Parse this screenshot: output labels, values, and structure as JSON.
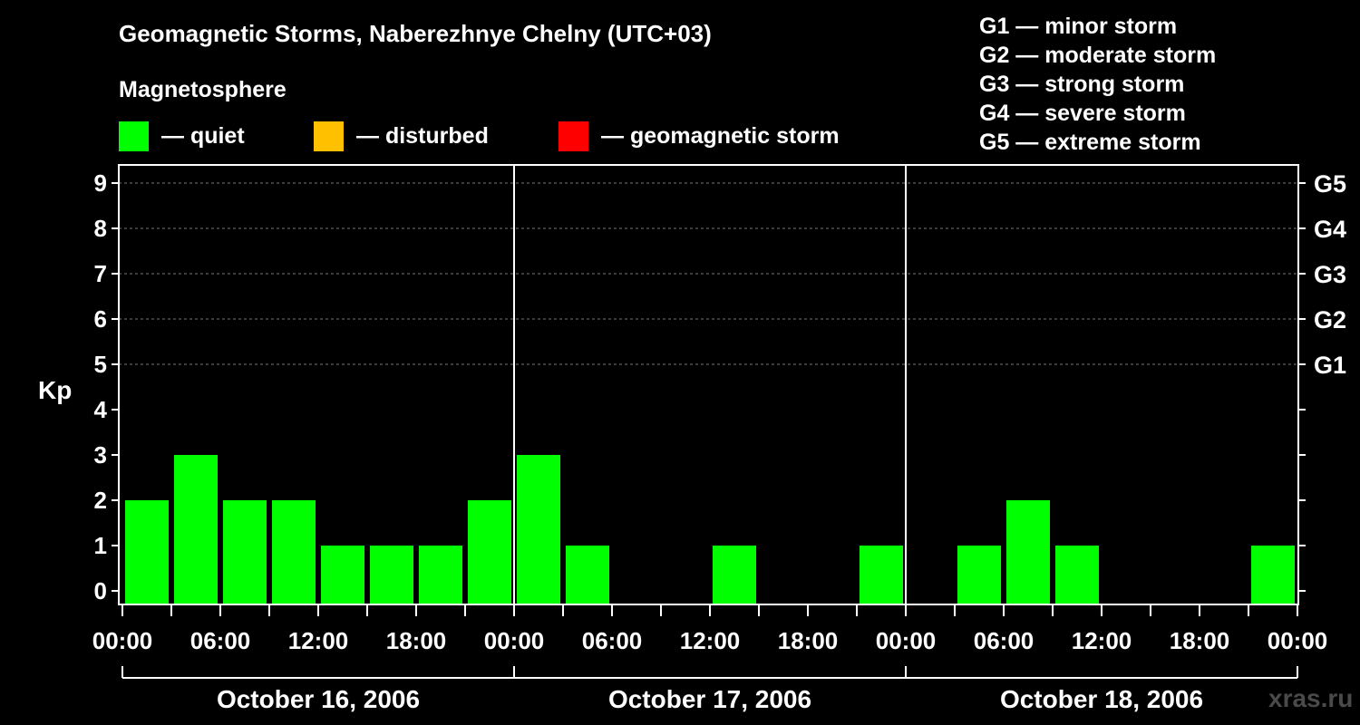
{
  "header": {
    "title": "Geomagnetic Storms, Naberezhnye Chelny (UTC+03)",
    "magnetosphere_title": "Magnetosphere"
  },
  "legend": {
    "items": [
      {
        "label": "— quiet",
        "color": "#00ff00"
      },
      {
        "label": "— disturbed",
        "color": "#ffc000"
      },
      {
        "label": "— geomagnetic storm",
        "color": "#ff0000"
      }
    ]
  },
  "g_scale": [
    "G1 — minor storm",
    "G2 — moderate storm",
    "G3 — strong storm",
    "G4 — severe storm",
    "G5 — extreme storm"
  ],
  "watermark": "xras.ru",
  "chart_data": {
    "type": "bar",
    "ylabel": "Kp",
    "ylim": [
      0,
      9
    ],
    "yticks": [
      "0",
      "1",
      "2",
      "3",
      "4",
      "5",
      "6",
      "7",
      "8",
      "9"
    ],
    "right_ticks": [
      {
        "value": 5,
        "label": "G1"
      },
      {
        "value": 6,
        "label": "G2"
      },
      {
        "value": 7,
        "label": "G3"
      },
      {
        "value": 8,
        "label": "G4"
      },
      {
        "value": 9,
        "label": "G5"
      }
    ],
    "right_minor_ticks": [
      0,
      1,
      2,
      3,
      4
    ],
    "grid_lines": [
      5,
      6,
      7,
      8,
      9
    ],
    "xtick_labels": [
      "00:00",
      "06:00",
      "12:00",
      "18:00",
      "00:00",
      "06:00",
      "12:00",
      "18:00",
      "00:00",
      "06:00",
      "12:00",
      "18:00",
      "00:00"
    ],
    "days": [
      "October 16, 2006",
      "October 17, 2006",
      "October 18, 2006"
    ],
    "interval_hours": 3,
    "bar_color": "#00ff00",
    "values": [
      2,
      3,
      2,
      2,
      1,
      1,
      1,
      2,
      3,
      1,
      0,
      0,
      1,
      0,
      0,
      1,
      0,
      1,
      2,
      1,
      0,
      0,
      0,
      1
    ]
  }
}
